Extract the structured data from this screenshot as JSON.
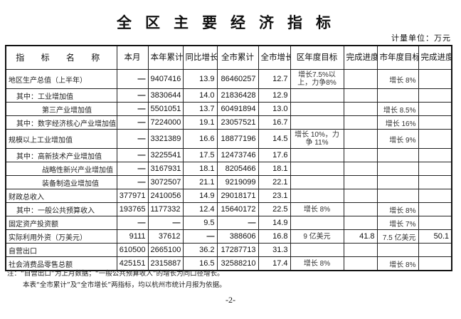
{
  "title": "全区主要经济指标",
  "unit": "计量单位：万元",
  "headers": [
    "指 标 名 称",
    "本月",
    "本年累计",
    "同比增长(%)",
    "全市累计",
    "全市增长(%)",
    "区年度目标",
    "完成进度(%)",
    "市年度目标",
    "完成进度(%)"
  ],
  "rows": [
    {
      "name": "地区生产总值（上半年）",
      "indent": 0,
      "month": "—",
      "ytd": "9407416",
      "yoy": "13.9",
      "city": "86460257",
      "city_g": "12.7",
      "dist_target": "增长7.5%以上，力争8%",
      "dist_prog": "",
      "city_target": "增长 8%",
      "city_prog": ""
    },
    {
      "name": "其中：工业增加值",
      "indent": 1,
      "month": "—",
      "ytd": "3830644",
      "yoy": "14.0",
      "city": "21836428",
      "city_g": "12.9",
      "dist_target": "",
      "dist_prog": "",
      "city_target": "",
      "city_prog": ""
    },
    {
      "name": "第三产业增加值",
      "indent": 2,
      "month": "—",
      "ytd": "5501051",
      "yoy": "13.7",
      "city": "60491894",
      "city_g": "13.0",
      "dist_target": "",
      "dist_prog": "",
      "city_target": "增长 8.5%",
      "city_prog": ""
    },
    {
      "name": "其中：数字经济核心产业增加值",
      "indent": 1,
      "month": "—",
      "ytd": "7224000",
      "yoy": "19.1",
      "city": "23057521",
      "city_g": "16.7",
      "dist_target": "",
      "dist_prog": "",
      "city_target": "增长 16%",
      "city_prog": ""
    },
    {
      "name": "规模以上工业增加值",
      "indent": 0,
      "month": "—",
      "ytd": "3321389",
      "yoy": "16.6",
      "city": "18877196",
      "city_g": "14.5",
      "dist_target": "增长 10%，力争 11%",
      "dist_prog": "",
      "city_target": "增长 9%",
      "city_prog": ""
    },
    {
      "name": "其中：高新技术产业增加值",
      "indent": 1,
      "month": "—",
      "ytd": "3225541",
      "yoy": "17.5",
      "city": "12473746",
      "city_g": "17.6",
      "dist_target": "",
      "dist_prog": "",
      "city_target": "",
      "city_prog": ""
    },
    {
      "name": "战略性新兴产业增加值",
      "indent": 2,
      "month": "—",
      "ytd": "3167931",
      "yoy": "18.1",
      "city": "8205466",
      "city_g": "18.1",
      "dist_target": "",
      "dist_prog": "",
      "city_target": "",
      "city_prog": ""
    },
    {
      "name": "装备制造业增加值",
      "indent": 2,
      "month": "—",
      "ytd": "3072507",
      "yoy": "21.1",
      "city": "9219099",
      "city_g": "22.1",
      "dist_target": "",
      "dist_prog": "",
      "city_target": "",
      "city_prog": ""
    },
    {
      "name": "财政总收入",
      "indent": 0,
      "month": "377971",
      "ytd": "2410056",
      "yoy": "14.9",
      "city": "29018171",
      "city_g": "23.1",
      "dist_target": "",
      "dist_prog": "",
      "city_target": "",
      "city_prog": ""
    },
    {
      "name": "其中：一般公共预算收入",
      "indent": 1,
      "month": "193765",
      "ytd": "1177332",
      "yoy": "12.4",
      "city": "15640172",
      "city_g": "22.5",
      "dist_target": "增长 8%",
      "dist_prog": "",
      "city_target": "增长 8%",
      "city_prog": ""
    },
    {
      "name": "固定资产投资额",
      "indent": 0,
      "month": "—",
      "ytd": "—",
      "yoy": "9.5",
      "city": "—",
      "city_g": "14.9",
      "dist_target": "",
      "dist_prog": "",
      "city_target": "增长 7%",
      "city_prog": ""
    },
    {
      "name": "实际利用外资（万美元）",
      "indent": 0,
      "month": "9111",
      "ytd": "37612",
      "yoy": "—",
      "city": "388606",
      "city_g": "16.8",
      "dist_target": "9 亿美元",
      "dist_prog": "41.8",
      "city_target": "7.5 亿美元",
      "city_prog": "50.1"
    },
    {
      "name": "自营出口",
      "indent": 0,
      "month": "610500",
      "ytd": "2665100",
      "yoy": "36.2",
      "city": "17287713",
      "city_g": "31.3",
      "dist_target": "",
      "dist_prog": "",
      "city_target": "",
      "city_prog": ""
    },
    {
      "name": "社会消费品零售总额",
      "indent": 0,
      "month": "425151",
      "ytd": "2315887",
      "yoy": "16.5",
      "city": "32588210",
      "city_g": "17.4",
      "dist_target": "增长 8%",
      "dist_prog": "",
      "city_target": "增长 8%",
      "city_prog": ""
    }
  ],
  "notes": [
    "注：“自营出口”为上月数据；“一般公共预算收入”的增长为同口径增长。",
    "本表“全市累计”及“全市增长”两指标，均以杭州市统计月报为依据。"
  ],
  "page": "-2-"
}
